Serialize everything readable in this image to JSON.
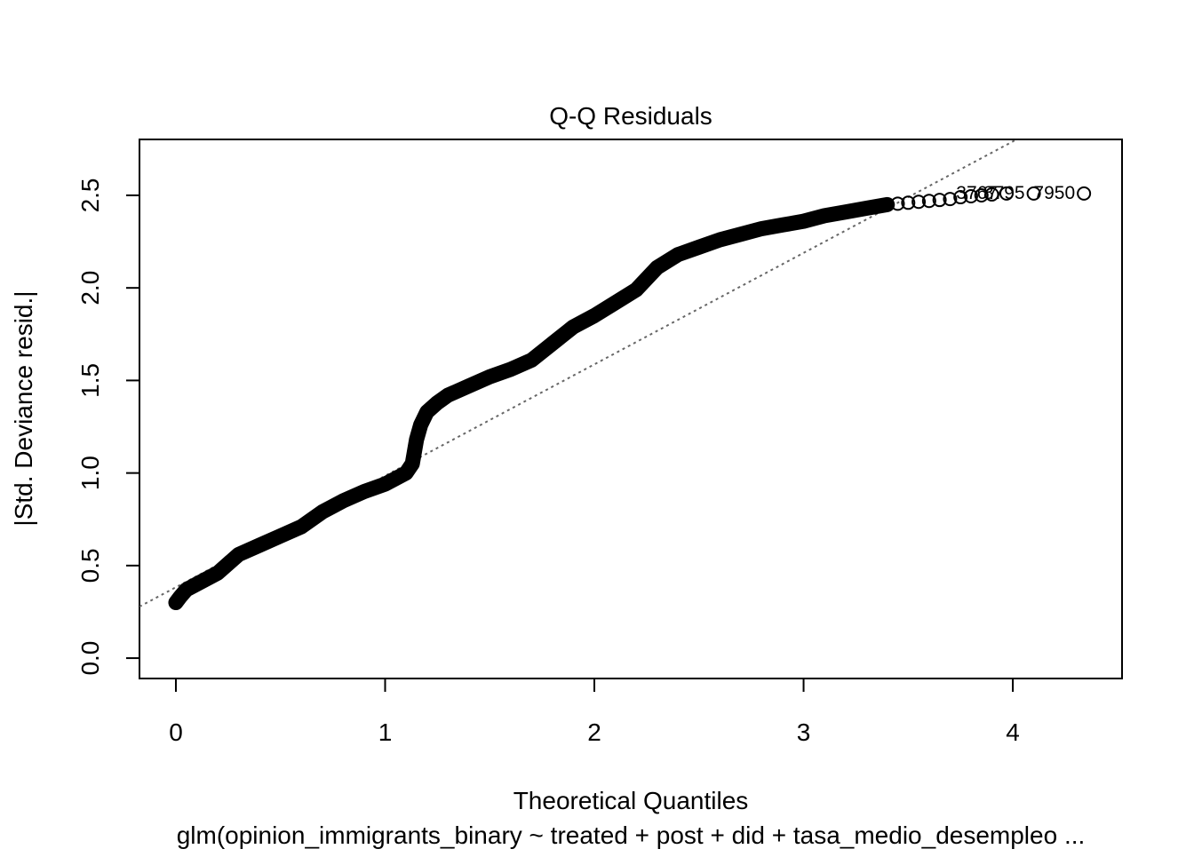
{
  "chart_data": {
    "type": "qq",
    "title": "Q-Q Residuals",
    "xlabel": "Theoretical Quantiles",
    "ylabel": "|Std. Deviance resid.|",
    "subtitle": "glm(opinion_immigrants_binary ~ treated + post + did + tasa_medio_desempleo ...",
    "xlim": [
      -0.174,
      4.522
    ],
    "ylim": [
      -0.11,
      2.802
    ],
    "xticks": [
      0,
      1,
      2,
      3,
      4
    ],
    "yticks": [
      {
        "value": 0,
        "label": "0.0"
      },
      0.5,
      {
        "value": 1,
        "label": "1.0"
      },
      1.5,
      {
        "value": 2,
        "label": "2.0"
      },
      2.5
    ],
    "color": "#000000",
    "reference_line": {
      "intercept": 0.383,
      "slope": 0.602,
      "color": "#666666"
    },
    "series": [
      {
        "style": "dense",
        "x": [
          0,
          0.02,
          0.05,
          0.1,
          0.15,
          0.2,
          0.25,
          0.3,
          0.4,
          0.5,
          0.6,
          0.7,
          0.8,
          0.9,
          1.0,
          1.05,
          1.1,
          1.13,
          1.15,
          1.17,
          1.2,
          1.25,
          1.3,
          1.4,
          1.5,
          1.6,
          1.7,
          1.8,
          1.9,
          2.0,
          2.1,
          2.2,
          2.25,
          2.3,
          2.4,
          2.5,
          2.6,
          2.7,
          2.8,
          2.9,
          3.0,
          3.1,
          3.2,
          3.3,
          3.4
        ],
        "y": [
          0.3,
          0.33,
          0.37,
          0.4,
          0.43,
          0.46,
          0.51,
          0.56,
          0.61,
          0.66,
          0.71,
          0.79,
          0.85,
          0.9,
          0.94,
          0.97,
          1.0,
          1.05,
          1.18,
          1.26,
          1.33,
          1.38,
          1.42,
          1.47,
          1.52,
          1.56,
          1.61,
          1.7,
          1.79,
          1.85,
          1.92,
          1.99,
          2.05,
          2.11,
          2.18,
          2.22,
          2.26,
          2.29,
          2.32,
          2.34,
          2.36,
          2.39,
          2.41,
          2.43,
          2.45
        ]
      },
      {
        "style": "points",
        "x": [
          3.45,
          3.5,
          3.55,
          3.6,
          3.65,
          3.7,
          3.75,
          3.8,
          3.85,
          3.9,
          3.97,
          4.1,
          4.34
        ],
        "y": [
          2.455,
          2.46,
          2.465,
          2.47,
          2.475,
          2.48,
          2.49,
          2.495,
          2.5,
          2.505,
          2.51,
          2.51,
          2.51
        ]
      }
    ],
    "point_labels": [
      "3767",
      "8795",
      "7950"
    ]
  }
}
